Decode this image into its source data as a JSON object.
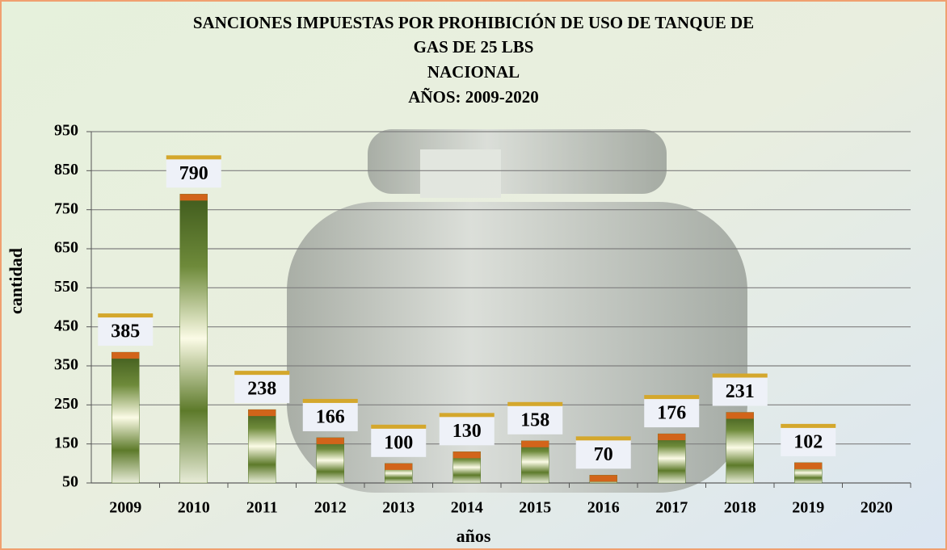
{
  "chart_data": {
    "type": "bar",
    "title": [
      "SANCIONES IMPUESTAS POR PROHIBICIÓN DE USO DE TANQUE DE",
      "GAS DE 25 LBS",
      "NACIONAL",
      "AÑOS: 2009-2020"
    ],
    "x_label": "años",
    "y_label": "cantidad",
    "categories": [
      "2009",
      "2010",
      "2011",
      "2012",
      "2013",
      "2014",
      "2015",
      "2016",
      "2017",
      "2018",
      "2019",
      "2020"
    ],
    "values": [
      385,
      790,
      238,
      166,
      100,
      130,
      158,
      70,
      176,
      231,
      102,
      50
    ],
    "value_labels": [
      "385",
      "790",
      "238",
      "166",
      "100",
      "130",
      "158",
      "70",
      "176",
      "231",
      "102",
      null
    ],
    "color": "#5a7a2a",
    "ylim": [
      50,
      950
    ],
    "yticks": [
      50,
      150,
      250,
      350,
      450,
      550,
      650,
      750,
      850,
      950
    ],
    "grid": true
  }
}
